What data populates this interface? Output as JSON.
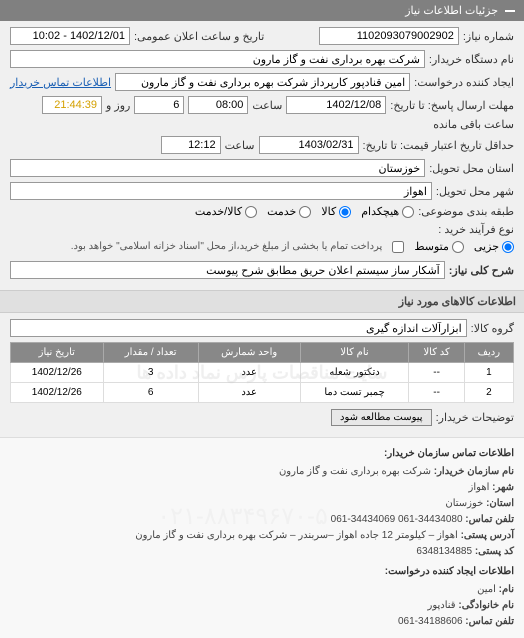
{
  "header": {
    "title": "جزئیات اطلاعات نیاز"
  },
  "form": {
    "request_number_label": "شماره نیاز:",
    "request_number": "1102093079002902",
    "public_date_label": "تاریخ و ساعت اعلان عمومی:",
    "public_date": "1402/12/01 - 10:02",
    "buyer_label": "نام دستگاه خریدار:",
    "buyer": "شرکت بهره برداری نفت و گاز مارون",
    "creator_label": "ایجاد کننده درخواست:",
    "creator": "امین قنادپور کارپرداز شرکت بهره برداری نفت و گاز مارون",
    "contact_link": "اطلاعات تماس خریدار",
    "deadline_label": "مهلت ارسال پاسخ: تا تاریخ:",
    "deadline_date": "1402/12/08",
    "time_label": "ساعت",
    "deadline_time": "08:00",
    "day_label": "روز و",
    "days_remaining": "6",
    "remaining_label": "ساعت باقی مانده",
    "remaining_time": "21:44:39",
    "validity_label": "حداقل تاریخ اعتبار قیمت: تا تاریخ:",
    "validity_date": "1403/02/31",
    "validity_time": "12:12",
    "province_label": "استان محل تحویل:",
    "province": "خوزستان",
    "city_label": "شهر محل تحویل:",
    "city": "اهواز",
    "category_label": "طبقه بندی موضوعی:",
    "category_none": "هیچکدام",
    "category_goods": "کالا",
    "category_service": "خدمت",
    "category_both": "کالا/خدمت",
    "purchase_type_label": "نوع فرآیند خرید :",
    "purchase_minor": "جزیی",
    "purchase_medium": "متوسط",
    "purchase_note": "پرداخت تمام یا بخشی از مبلغ خرید،از محل \"اسناد خزانه اسلامی\" خواهد بود.",
    "desc_label": "شرح کلی نیاز:",
    "desc": "آشکار ساز سیستم اعلان حریق مطابق شرح پیوست",
    "items_title": "اطلاعات کالاهای مورد نیاز",
    "group_label": "گروه کالا:",
    "group": "ابزارآلات اندازه گیری",
    "buyer_notes_label": "توضیحات خریدار:",
    "attachment_btn": "پیوست مطالعه شود"
  },
  "table": {
    "headers": {
      "row": "ردیف",
      "code": "کد کالا",
      "name": "نام کالا",
      "unit": "واحد شمارش",
      "qty": "تعداد / مقدار",
      "date": "تاریخ نیاز"
    },
    "rows": [
      {
        "row": "1",
        "code": "--",
        "name": "دتکتور شعله",
        "unit": "عدد",
        "qty": "3",
        "date": "1402/12/26"
      },
      {
        "row": "2",
        "code": "--",
        "name": "چمبر تست دما",
        "unit": "عدد",
        "qty": "6",
        "date": "1402/12/26"
      }
    ]
  },
  "contact": {
    "title1": "اطلاعات تماس سازمان خریدار:",
    "org_label": "نام سازمان خریدار:",
    "org": "شرکت بهره برداری نفت و گاز مارون",
    "city_label": "شهر:",
    "city": "اهواز",
    "province_label": "استان:",
    "province": "خوزستان",
    "phone_label": "تلفن تماس:",
    "phone": "34434080-061  34434069-061",
    "address_label": "آدرس پستی:",
    "address": "اهواز – کیلومتر 12 جاده اهواز –سربندر – شرکت بهره برداری نفت و گاز مارون",
    "postal_label": "کد پستی:",
    "postal": "6348134885",
    "title2": "اطلاعات ایجاد کننده درخواست:",
    "name_label": "نام:",
    "name": "امین",
    "lastname_label": "نام خانوادگی:",
    "lastname": "قنادپور",
    "contact_phone_label": "تلفن تماس:",
    "contact_phone": "34188606-061"
  },
  "watermarks": {
    "w1": "سایت مناقصات پارس نماد داده ها",
    "w2": "۰۲۱-۸۸۳۴۹۶۷۰-۵"
  }
}
